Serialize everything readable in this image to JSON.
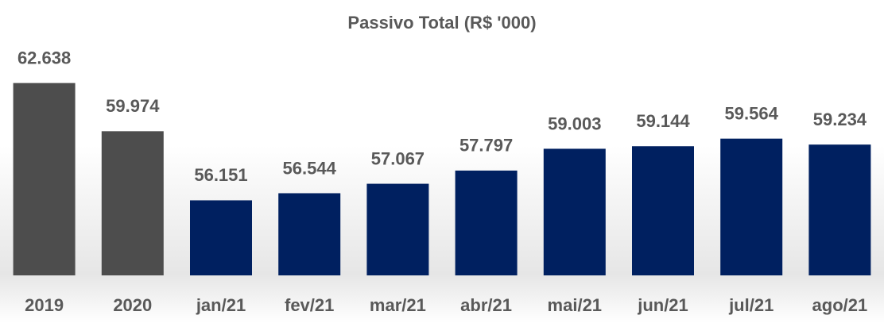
{
  "chart_data": {
    "type": "bar",
    "title": "Passivo Total (R$ '000)",
    "categories": [
      "2019",
      "2020",
      "jan/21",
      "fev/21",
      "mar/21",
      "abr/21",
      "mai/21",
      "jun/21",
      "jul/21",
      "ago/21"
    ],
    "values": [
      62638,
      59974,
      56151,
      56544,
      57067,
      57797,
      59003,
      59144,
      59564,
      59234
    ],
    "value_labels": [
      "62.638",
      "59.974",
      "56.151",
      "56.544",
      "57.067",
      "57.797",
      "59.003",
      "59.144",
      "59.564",
      "59.234"
    ],
    "colors": [
      "#4d4d4d",
      "#4d4d4d",
      "#002060",
      "#002060",
      "#002060",
      "#002060",
      "#002060",
      "#002060",
      "#002060",
      "#002060"
    ],
    "ylim": [
      52000,
      63500
    ]
  }
}
